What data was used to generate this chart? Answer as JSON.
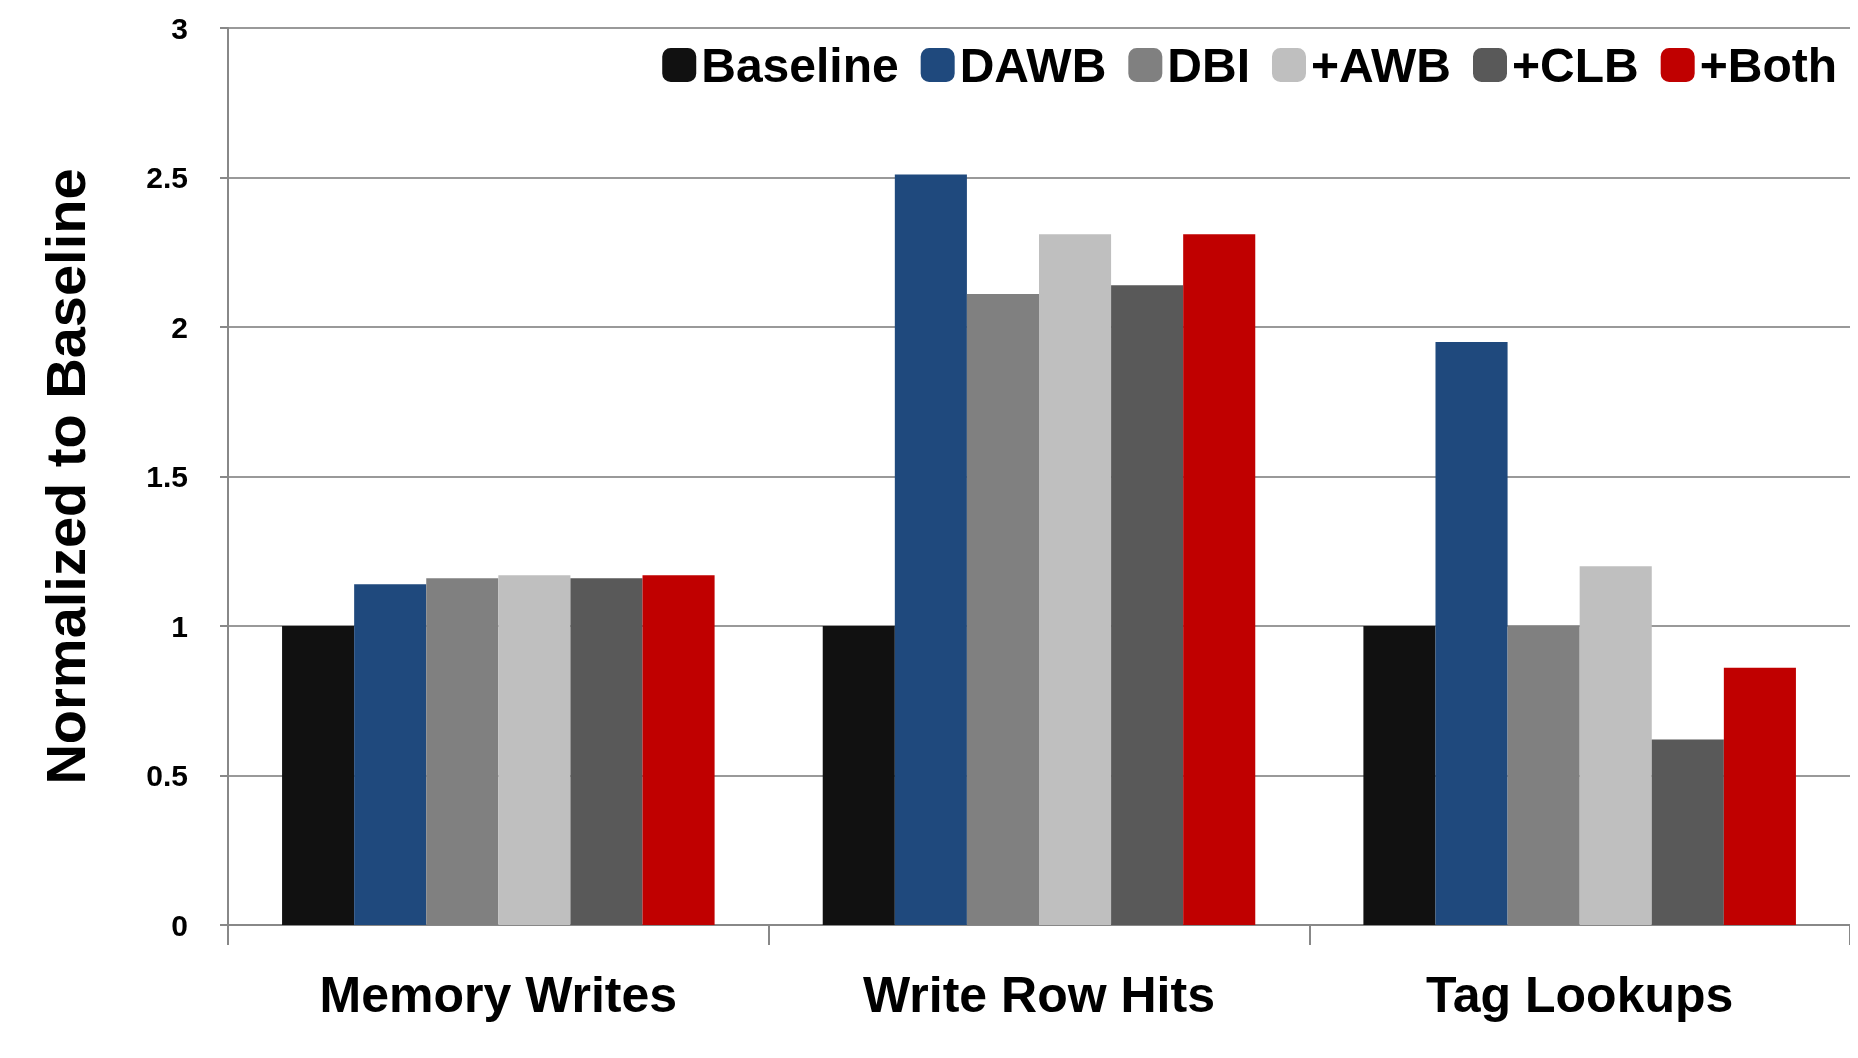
{
  "chart_data": {
    "type": "bar",
    "ylabel": "Normalized to Baseline",
    "categories": [
      "Memory Writes",
      "Write Row Hits",
      "Tag Lookups"
    ],
    "series": [
      {
        "name": "Baseline",
        "color": "#111111",
        "values": [
          1,
          1,
          1
        ]
      },
      {
        "name": "DAWB",
        "color": "#1f497d",
        "values": [
          1.14,
          2.51,
          1.95
        ]
      },
      {
        "name": "DBI",
        "color": "#808080",
        "values": [
          1.16,
          2.11,
          1.0
        ]
      },
      {
        "name": "+AWB",
        "color": "#bfbfbf",
        "values": [
          1.17,
          2.31,
          1.2
        ]
      },
      {
        "name": "+CLB",
        "color": "#595959",
        "values": [
          1.16,
          2.14,
          0.62
        ]
      },
      {
        "name": "+Both",
        "color": "#c00000",
        "values": [
          1.17,
          2.31,
          0.86
        ]
      }
    ],
    "ylim": [
      0,
      3
    ],
    "yticks": [
      0,
      0.5,
      1,
      1.5,
      2,
      2.5,
      3
    ],
    "grid": "y",
    "legend": "top right"
  }
}
